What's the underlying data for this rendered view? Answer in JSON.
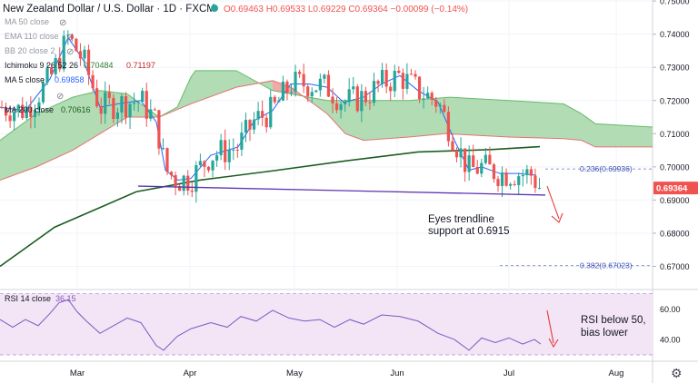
{
  "chart_data": {
    "type": "candlestick",
    "header": {
      "symbol": "New Zealand Dollar / U.S. Dollar · 1D · FXCM",
      "ohlc_text": "O0.69463 H0.69533 L0.69229 C0.69364 −0.00099 (−0.14%)",
      "price_tag": "0.69364"
    },
    "indicators": [
      {
        "label": "MA 50 close",
        "value": ""
      },
      {
        "label": "EMA 110 close",
        "value": ""
      },
      {
        "label": "BB 20 close 2",
        "value": ""
      },
      {
        "label": "Ichimoku 9 26 52 26",
        "values": [
          "0.70484",
          "0.71197"
        ]
      },
      {
        "label": "MA 5 close",
        "value": "0.69858"
      },
      {
        "label": "MA 200 close",
        "value": "0.70616"
      }
    ],
    "y_axis": {
      "ticks": [
        "0.75000",
        "0.74000",
        "0.73000",
        "0.72000",
        "0.71000",
        "0.70000",
        "0.69000",
        "0.68000",
        "0.67000"
      ],
      "range": [
        0.6633,
        0.7503
      ]
    },
    "x_axis": {
      "labels": [
        "Mar",
        "Apr",
        "May",
        "Jun",
        "Jul",
        "Aug"
      ]
    },
    "fib_levels": [
      {
        "label": "0.236(0.69936)",
        "value": 0.69936
      },
      {
        "label": "0.382(0.67023)",
        "value": 0.67023
      }
    ],
    "ma200_points": [
      [
        0,
        0.67
      ],
      [
        60,
        0.6818
      ],
      [
        150,
        0.6925
      ],
      [
        220,
        0.696
      ],
      [
        300,
        0.6988
      ],
      [
        380,
        0.7018
      ],
      [
        460,
        0.7045
      ],
      [
        540,
        0.7052
      ],
      [
        594,
        0.7061
      ]
    ],
    "trendline": [
      [
        152,
        0.6942
      ],
      [
        600,
        0.6915
      ]
    ],
    "ma5_points": [
      [
        0,
        0.718
      ],
      [
        28,
        0.717
      ],
      [
        55,
        0.7265
      ],
      [
        75,
        0.739
      ],
      [
        92,
        0.732
      ],
      [
        110,
        0.718
      ],
      [
        130,
        0.719
      ],
      [
        155,
        0.72
      ],
      [
        172,
        0.7135
      ],
      [
        182,
        0.699
      ],
      [
        196,
        0.696
      ],
      [
        210,
        0.6965
      ],
      [
        232,
        0.7035
      ],
      [
        262,
        0.706
      ],
      [
        280,
        0.714
      ],
      [
        300,
        0.717
      ],
      [
        320,
        0.725
      ],
      [
        340,
        0.725
      ],
      [
        360,
        0.724
      ],
      [
        378,
        0.7195
      ],
      [
        400,
        0.721
      ],
      [
        420,
        0.725
      ],
      [
        440,
        0.7275
      ],
      [
        460,
        0.723
      ],
      [
        482,
        0.7195
      ],
      [
        500,
        0.708
      ],
      [
        516,
        0.699
      ],
      [
        530,
        0.7
      ],
      [
        550,
        0.698
      ],
      [
        570,
        0.698
      ],
      [
        590,
        0.6975
      ]
    ],
    "cloud_a": [
      [
        0,
        0.708
      ],
      [
        40,
        0.716
      ],
      [
        80,
        0.721
      ],
      [
        110,
        0.723
      ],
      [
        140,
        0.722
      ],
      [
        175,
        0.715
      ],
      [
        195,
        0.718
      ],
      [
        210,
        0.727
      ],
      [
        215,
        0.729
      ],
      [
        260,
        0.729
      ],
      [
        300,
        0.723
      ],
      [
        360,
        0.72
      ],
      [
        400,
        0.72
      ],
      [
        450,
        0.72
      ],
      [
        495,
        0.721
      ],
      [
        560,
        0.72
      ],
      [
        620,
        0.719
      ],
      [
        640,
        0.716
      ],
      [
        655,
        0.713
      ],
      [
        718,
        0.712
      ]
    ],
    "cloud_b": [
      [
        0,
        0.696
      ],
      [
        40,
        0.7
      ],
      [
        80,
        0.705
      ],
      [
        110,
        0.71
      ],
      [
        140,
        0.715
      ],
      [
        175,
        0.715
      ],
      [
        210,
        0.719
      ],
      [
        260,
        0.724
      ],
      [
        300,
        0.726
      ],
      [
        320,
        0.724
      ],
      [
        340,
        0.72
      ],
      [
        360,
        0.716
      ],
      [
        380,
        0.71
      ],
      [
        400,
        0.708
      ],
      [
        450,
        0.709
      ],
      [
        490,
        0.71
      ],
      [
        560,
        0.709
      ],
      [
        620,
        0.7085
      ],
      [
        640,
        0.708
      ],
      [
        655,
        0.706
      ],
      [
        718,
        0.706
      ]
    ],
    "rsi": {
      "label": "RSI 14 close",
      "value": "36.15",
      "ticks": [
        "60.00",
        "40.00"
      ],
      "range": [
        27,
        72
      ],
      "points": [
        [
          0,
          53
        ],
        [
          14,
          48
        ],
        [
          28,
          53
        ],
        [
          42,
          49
        ],
        [
          55,
          57
        ],
        [
          65,
          64
        ],
        [
          75,
          66
        ],
        [
          85,
          58
        ],
        [
          95,
          52
        ],
        [
          110,
          44
        ],
        [
          125,
          49
        ],
        [
          140,
          54
        ],
        [
          155,
          51
        ],
        [
          172,
          36
        ],
        [
          180,
          33
        ],
        [
          195,
          42
        ],
        [
          210,
          47
        ],
        [
          232,
          51
        ],
        [
          250,
          48
        ],
        [
          265,
          55
        ],
        [
          282,
          52
        ],
        [
          300,
          59
        ],
        [
          318,
          54
        ],
        [
          335,
          52
        ],
        [
          352,
          53
        ],
        [
          368,
          48
        ],
        [
          385,
          53
        ],
        [
          400,
          50
        ],
        [
          420,
          56
        ],
        [
          440,
          55
        ],
        [
          460,
          52
        ],
        [
          482,
          44
        ],
        [
          500,
          40
        ],
        [
          516,
          33
        ],
        [
          530,
          41
        ],
        [
          545,
          38
        ],
        [
          560,
          41
        ],
        [
          575,
          37
        ],
        [
          588,
          40
        ],
        [
          595,
          37
        ]
      ]
    },
    "annotations": {
      "main": [
        "Eyes trendline",
        "support at 0.6915"
      ],
      "rsi": [
        "RSI below 50,",
        "bias lower"
      ]
    },
    "colors": {
      "up": "#26a69a",
      "down": "#ef5350",
      "ma200": "#1b5e20",
      "ma5": "#2962ff",
      "cloud_bull": "#a5d6a7",
      "cloud_bear": "#ef9a9a",
      "trendline": "#5e35b1",
      "rsi_line": "#7e57c2",
      "rsi_fill": "#f3e5f5",
      "arrow": "#e53935",
      "fib": "#7986cb",
      "price_tag": "#ef5350"
    }
  }
}
